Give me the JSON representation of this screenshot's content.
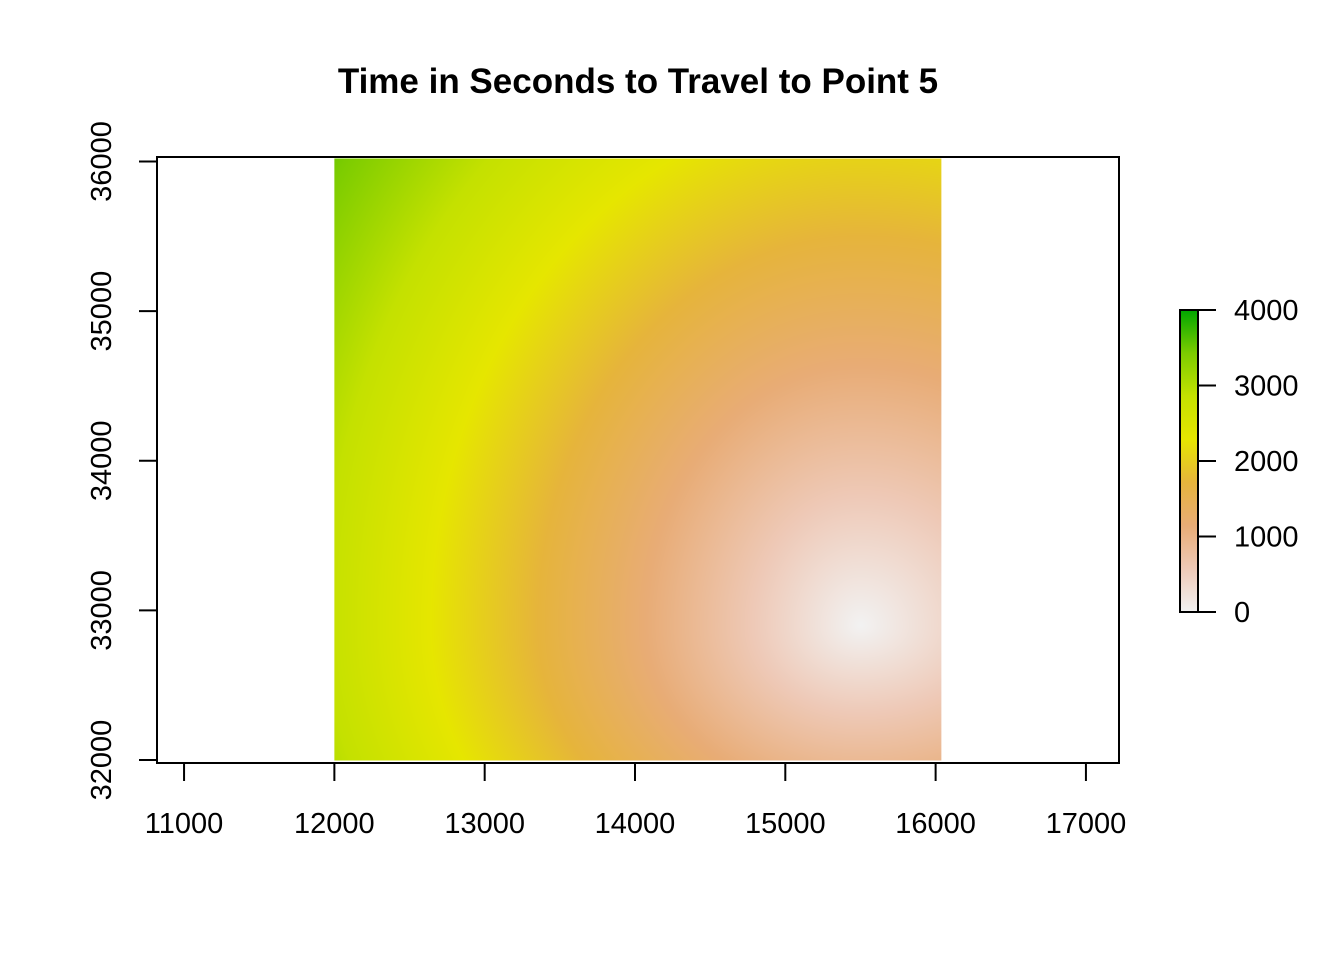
{
  "chart_data": {
    "type": "heatmap",
    "title": "Time in Seconds to Travel to Point 5",
    "xlabel": "",
    "ylabel": "",
    "xlim": [
      10820,
      17220
    ],
    "ylim": [
      31980,
      36030
    ],
    "x_ticks": [
      11000,
      12000,
      13000,
      14000,
      15000,
      16000,
      17000
    ],
    "y_ticks": [
      32000,
      33000,
      34000,
      35000,
      36000
    ],
    "x_tick_labels": [
      "11000",
      "12000",
      "13000",
      "14000",
      "15000",
      "16000",
      "17000"
    ],
    "y_tick_labels": [
      "32000",
      "33000",
      "34000",
      "35000",
      "36000"
    ],
    "raster_extent": {
      "xmin": 12000,
      "xmax": 16040,
      "ymin": 32000,
      "ymax": 36020
    },
    "source_point": {
      "x": 15500,
      "y": 32900
    },
    "field": "travel time increasing with distance from the source point; roughly 0 near (15500, 32900), about 2100 along the yellow arc, about 4000 at the far upper-left corner",
    "value_range": [
      0,
      4000
    ],
    "colormap": [
      "#f2f2f2",
      "#eec9b7",
      "#e8ac76",
      "#e6b43c",
      "#e6e600",
      "#c4e100",
      "#7ccc00",
      "#00a600"
    ],
    "legend": {
      "ticks": [
        0,
        1000,
        2000,
        3000,
        4000
      ],
      "tick_labels": [
        "0",
        "1000",
        "2000",
        "3000",
        "4000"
      ],
      "placement": "right"
    },
    "grid": false
  }
}
